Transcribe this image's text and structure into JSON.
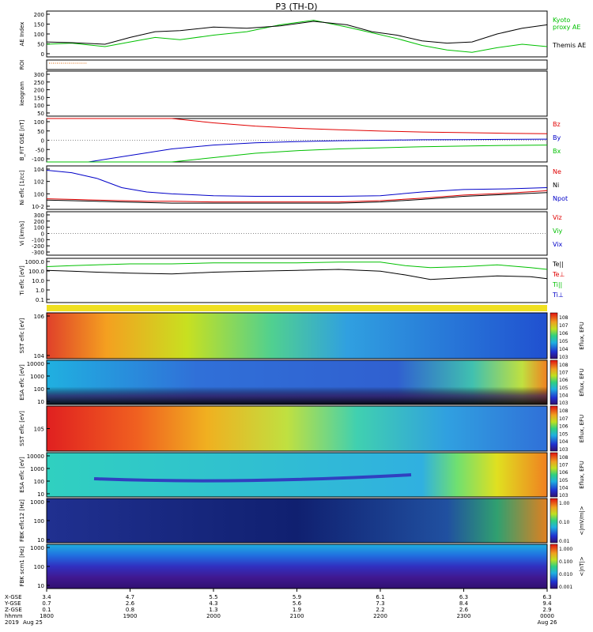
{
  "title": "P3 (TH-D)",
  "date": "2019",
  "colors": {
    "black": "#000000",
    "red": "#e00000",
    "green": "#00c000",
    "blue": "#0000c8",
    "orange": "#d86000",
    "dots": "#888888"
  },
  "time_axis": {
    "ticks": [
      "1800",
      "1900",
      "2000",
      "2100",
      "2200",
      "2300",
      "0000"
    ],
    "day_labels": [
      "Aug 25",
      "Aug 26"
    ],
    "row_labels": [
      "X-GSE",
      "Y-GSE",
      "Z-GSE",
      "hhmm",
      "2019"
    ],
    "rows": [
      [
        "3.4",
        "4.7",
        "5.5",
        "5.9",
        "6.1",
        "6.3",
        "6.3"
      ],
      [
        "0.7",
        "2.6",
        "4.3",
        "5.6",
        "7.3",
        "8.4",
        "9.4"
      ],
      [
        "0.1",
        "0.8",
        "1.3",
        "1.9",
        "2.2",
        "2.6",
        "2.9"
      ]
    ]
  },
  "chart_data": [
    {
      "type": "line",
      "panel": "AE",
      "ylabel": "AE Index",
      "ylim": [
        0,
        200
      ],
      "yticks": [
        "200",
        "150",
        "100",
        "50",
        "0"
      ],
      "x": [
        0,
        0.3,
        0.7,
        1.0,
        1.3,
        1.6,
        2.0,
        2.4,
        2.8,
        3.2,
        3.6,
        3.9,
        4.2,
        4.5,
        4.8,
        5.1,
        5.4,
        5.7,
        6.0
      ],
      "series": [
        {
          "name": "Kyoto proxy AE",
          "color": "green",
          "values": [
            55,
            60,
            45,
            65,
            85,
            75,
            95,
            110,
            140,
            160,
            130,
            105,
            80,
            50,
            30,
            20,
            40,
            55,
            45
          ]
        },
        {
          "name": "Themis AE",
          "color": "black",
          "values": [
            65,
            62,
            55,
            85,
            110,
            115,
            130,
            125,
            135,
            155,
            140,
            110,
            95,
            70,
            60,
            65,
            100,
            125,
            140
          ]
        }
      ]
    },
    {
      "type": "line",
      "panel": "ROI",
      "ylabel": "ROI"
    },
    {
      "type": "heatmap",
      "panel": "Keogram",
      "ylabel": "keogram",
      "ylim": [
        0,
        300
      ],
      "yticks": [
        "300",
        "250",
        "200",
        "150",
        "100",
        "50"
      ]
    },
    {
      "type": "line",
      "panel": "B_FIT",
      "ylabel": "B_FIT GSE [nT]",
      "ylim": [
        -100,
        100
      ],
      "yticks": [
        "100",
        "50",
        "0",
        "-50",
        "-100"
      ],
      "x": [
        0,
        0.5,
        1.0,
        1.5,
        2.0,
        2.5,
        3.0,
        3.5,
        4.0,
        4.5,
        5.0,
        5.5,
        6.0
      ],
      "series": [
        {
          "name": "Bz",
          "color": "red",
          "values": [
            110,
            110,
            105,
            100,
            80,
            65,
            55,
            48,
            42,
            38,
            35,
            32,
            30
          ]
        },
        {
          "name": "By",
          "color": "blue",
          "values": [
            -120,
            -100,
            -70,
            -40,
            -22,
            -12,
            -6,
            -2,
            0,
            2,
            3,
            4,
            5
          ]
        },
        {
          "name": "Bx",
          "color": "green",
          "values": [
            -130,
            -120,
            -115,
            -100,
            -80,
            -60,
            -48,
            -40,
            -35,
            -30,
            -27,
            -24,
            -22
          ]
        }
      ]
    },
    {
      "type": "line",
      "panel": "Ni",
      "ylabel": "Ni eflc [1/cc]",
      "scale": "log",
      "ylim": [
        -2,
        5
      ],
      "yticks": [
        "10^4",
        "10^2",
        "10^0",
        "10^-2"
      ],
      "x": [
        0,
        0.3,
        0.6,
        0.9,
        1.2,
        1.5,
        2.0,
        2.5,
        3.0,
        3.5,
        4.0,
        4.5,
        5.0,
        5.5,
        6.0
      ],
      "series": [
        {
          "name": "Ne",
          "color": "red",
          "values": [
            -0.3,
            -0.4,
            -0.5,
            -0.6,
            -0.7,
            -0.7,
            -0.8,
            -0.8,
            -0.8,
            -0.8,
            -0.6,
            -0.2,
            0.3,
            0.6,
            1.0
          ]
        },
        {
          "name": "Ni",
          "color": "black",
          "values": [
            -0.5,
            -0.6,
            -0.7,
            -0.8,
            -0.9,
            -1.0,
            -1.0,
            -1.0,
            -1.0,
            -1.0,
            -0.8,
            -0.4,
            0.1,
            0.4,
            0.7
          ]
        },
        {
          "name": "Npot",
          "color": "blue",
          "values": [
            4.3,
            3.9,
            3.0,
            1.5,
            0.8,
            0.5,
            0.2,
            0.1,
            0.1,
            0.1,
            0.2,
            0.8,
            1.2,
            1.3,
            1.5
          ]
        }
      ]
    },
    {
      "type": "line",
      "panel": "Vi",
      "ylabel": "Vi [km/s]",
      "ylim": [
        -300,
        300
      ],
      "yticks": [
        "300",
        "200",
        "100",
        "0",
        "-100",
        "-200",
        "-300"
      ],
      "series": [
        {
          "name": "Viz",
          "color": "red"
        },
        {
          "name": "Viy",
          "color": "green"
        },
        {
          "name": "Vix",
          "color": "blue"
        }
      ]
    },
    {
      "type": "line",
      "panel": "Ti",
      "ylabel": "Ti eflc [eV]",
      "scale": "log",
      "ylim": [
        -1.3,
        3.5
      ],
      "yticks": [
        "1000.0",
        "100.0",
        "10.0",
        "1.0",
        "0.1"
      ],
      "x": [
        0,
        0.3,
        0.6,
        1.0,
        1.5,
        2.0,
        2.5,
        3.0,
        3.5,
        4.0,
        4.3,
        4.6,
        5.0,
        5.4,
        5.8,
        6.0
      ],
      "series": [
        {
          "name": "Te||",
          "color": "black",
          "values": [
            2.2,
            2.1,
            2.0,
            1.9,
            1.8,
            2.0,
            2.1,
            2.2,
            2.3,
            2.1,
            1.7,
            1.2,
            1.4,
            1.6,
            1.5,
            1.3
          ]
        },
        {
          "name": "Te⊥",
          "color": "red",
          "values": [
            2.5,
            2.6,
            2.7,
            2.8,
            2.8,
            2.9,
            2.9,
            3.0,
            3.0,
            3.0,
            2.6,
            2.4,
            2.5,
            2.7,
            2.4,
            2.2
          ]
        },
        {
          "name": "Ti||",
          "color": "green",
          "values": [
            2.6,
            2.7,
            2.8,
            2.9,
            2.9,
            3.0,
            3.0,
            3.0,
            3.1,
            3.1,
            2.7,
            2.5,
            2.6,
            2.8,
            2.5,
            2.3
          ]
        },
        {
          "name": "Ti⊥",
          "color": "blue"
        }
      ]
    },
    {
      "type": "heatmap",
      "panel": "SST",
      "ylabel": "SST eflc [eV]",
      "yticks": [
        "10^6",
        "10^4"
      ],
      "colorbar": {
        "label": "Eflux, EFU",
        "ticks": [
          "10^8",
          "10^7",
          "10^6",
          "10^5",
          "10^4",
          "10^3"
        ]
      }
    },
    {
      "type": "heatmap",
      "panel": "ESA",
      "ylabel": "ESA eflc [eV]",
      "yticks": [
        "10000",
        "1000",
        "100",
        "10"
      ],
      "colorbar": {
        "label": "Eflux, EFU",
        "ticks": [
          "10^8",
          "10^7",
          "10^6",
          "10^5",
          "10^4",
          "10^3"
        ]
      }
    },
    {
      "type": "heatmap",
      "panel": "SST_i",
      "ylabel": "SST eflc [eV]",
      "yticks": [
        "10^5"
      ],
      "colorbar": {
        "label": "Eflux, EFU",
        "ticks": [
          "10^8",
          "10^7",
          "10^6",
          "10^5",
          "10^4",
          "10^3"
        ]
      }
    },
    {
      "type": "heatmap",
      "panel": "ESA_i",
      "ylabel": "ESA eflc [eV]",
      "yticks": [
        "10000",
        "1000",
        "100",
        "10"
      ],
      "colorbar": {
        "label": "Eflux, EFU",
        "ticks": [
          "10^8",
          "10^7",
          "10^6",
          "10^5",
          "10^4",
          "10^3"
        ]
      }
    },
    {
      "type": "heatmap",
      "panel": "FBK_E",
      "ylabel": "FBK eflc12 [Hz]",
      "yticks": [
        "1000",
        "100",
        "10"
      ],
      "colorbar": {
        "label": "<|mV/m|>",
        "ticks": [
          "1.00",
          "0.10",
          "0.01"
        ]
      }
    },
    {
      "type": "heatmap",
      "panel": "FBK_B",
      "ylabel": "FBK scm1 [Hz]",
      "yticks": [
        "1000",
        "100",
        "10"
      ],
      "colorbar": {
        "label": "<|nT|>",
        "ticks": [
          "1.000",
          "0.100",
          "0.010",
          "0.001"
        ]
      }
    }
  ]
}
